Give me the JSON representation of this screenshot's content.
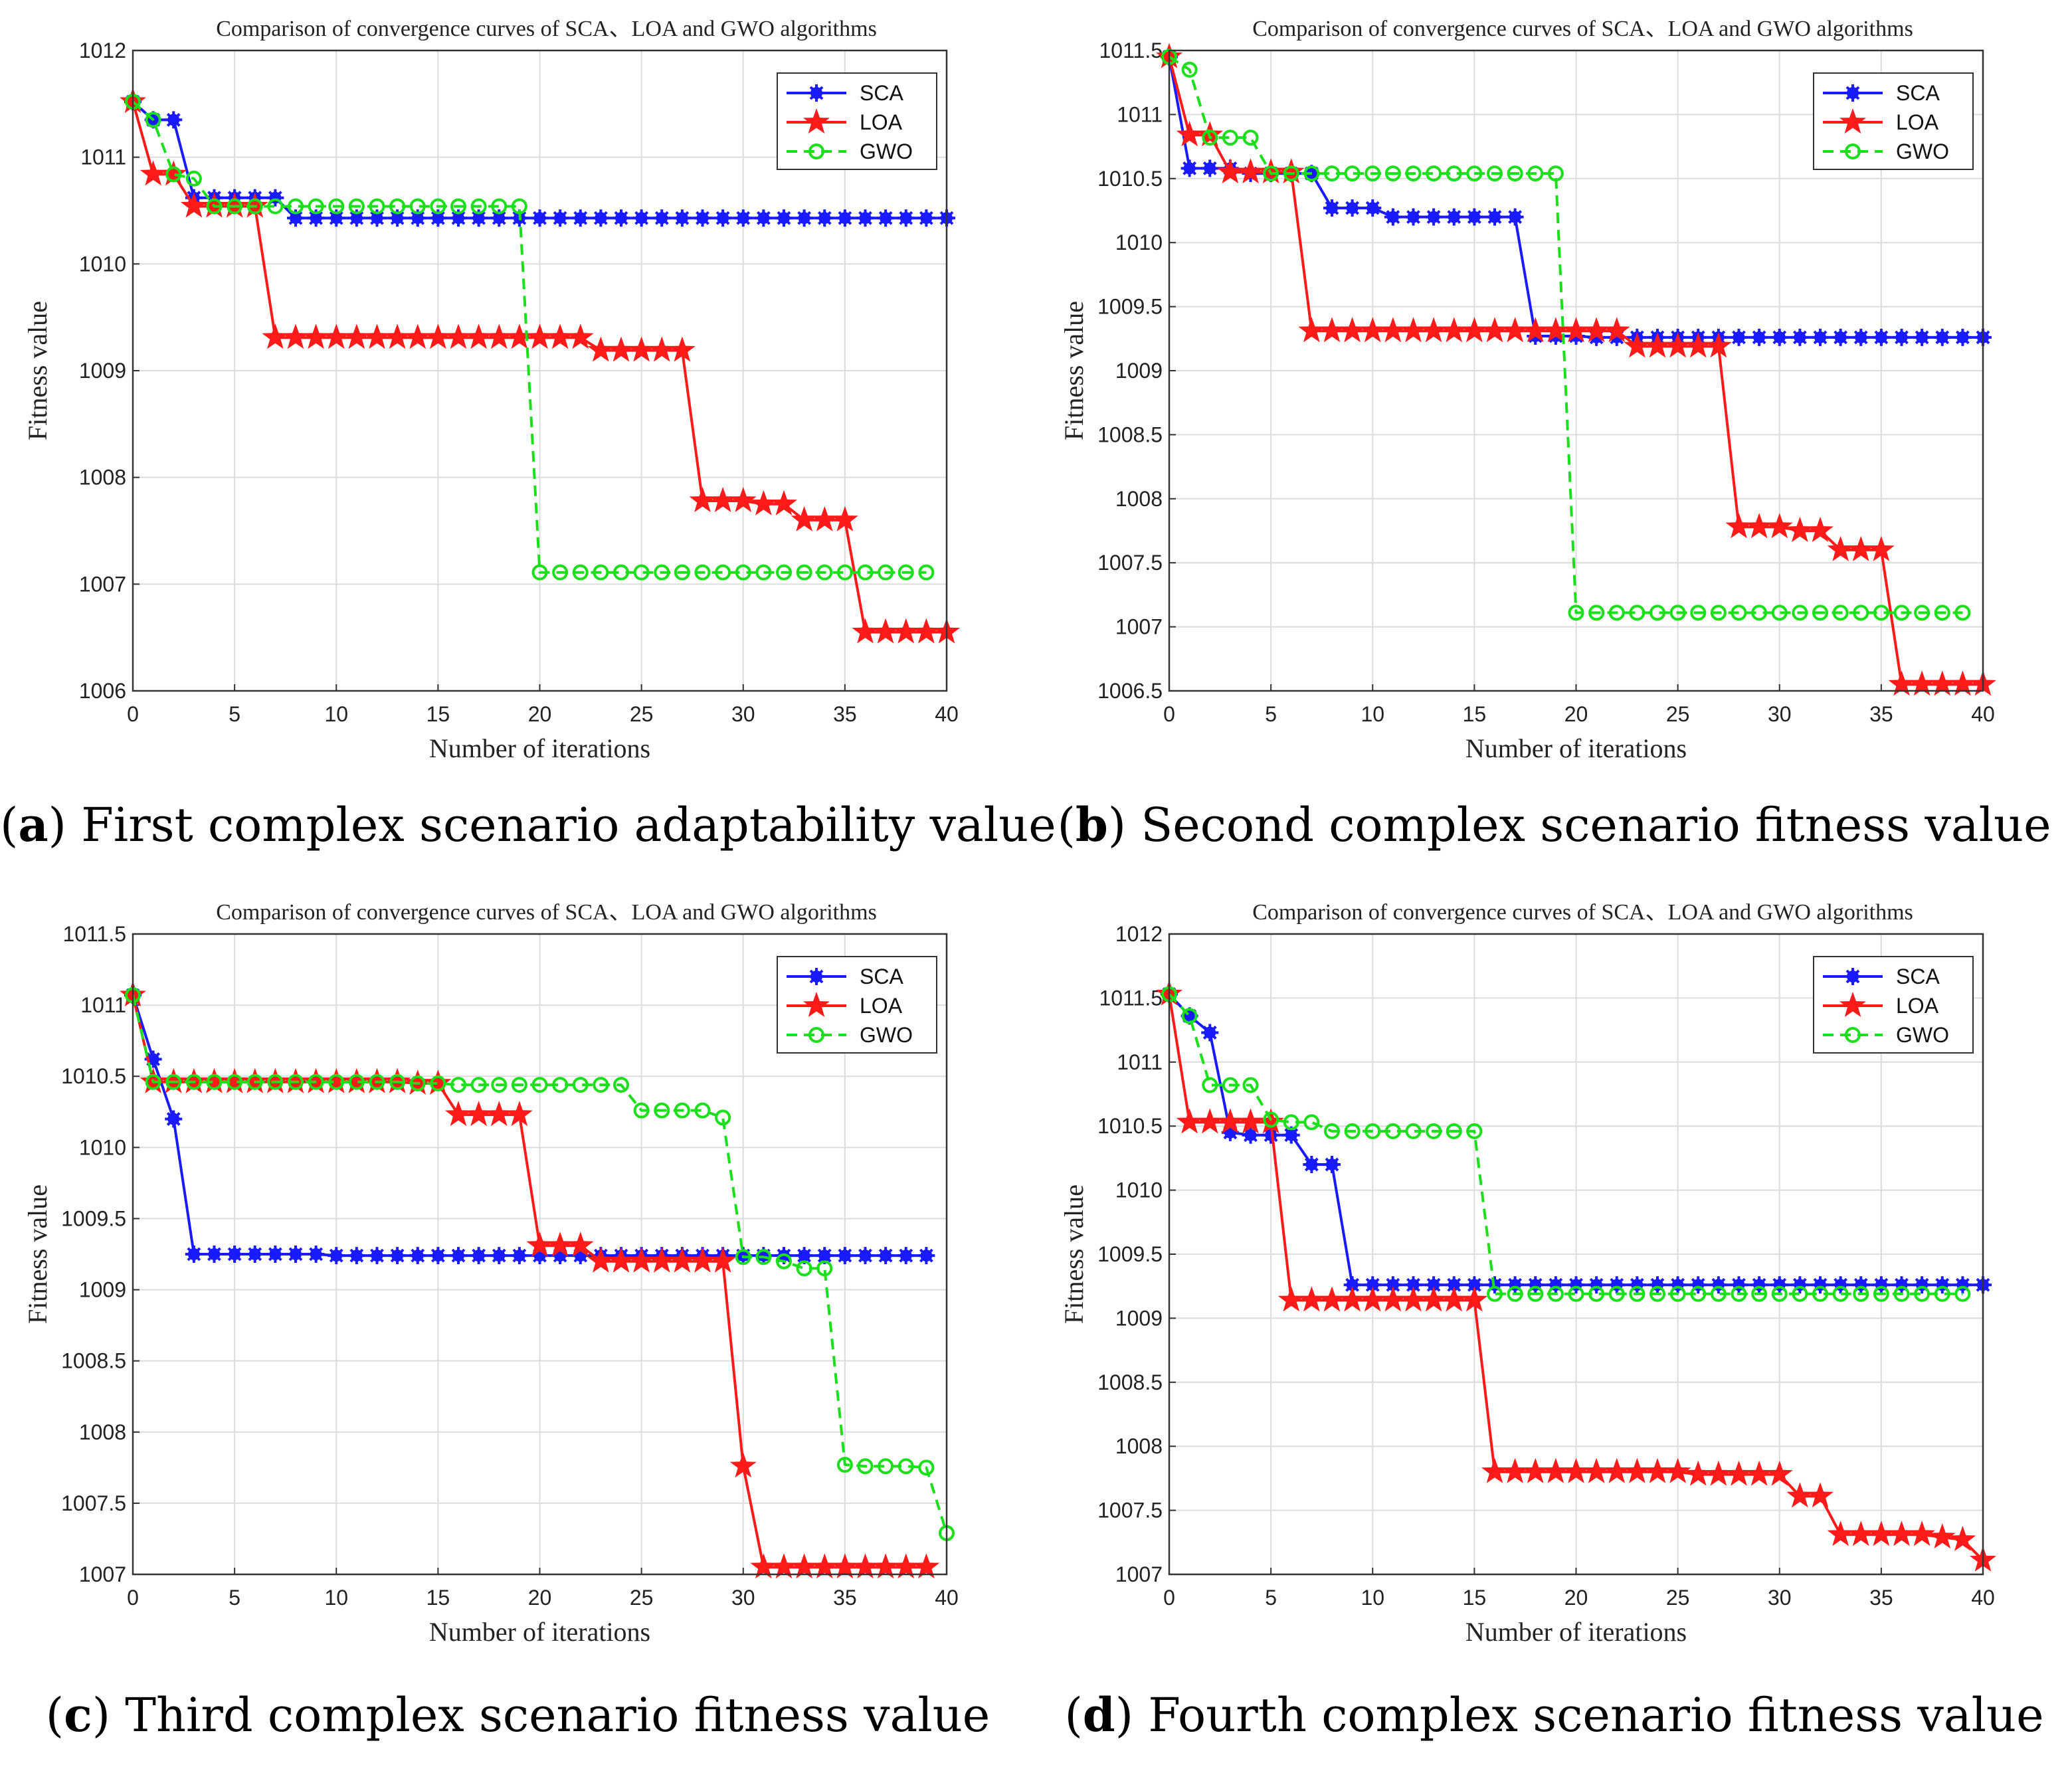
{
  "figure": {
    "panels": [
      {
        "letter": "a",
        "caption_rest": "First complex scenario adaptability value"
      },
      {
        "letter": "b",
        "caption_rest": "Second complex scenario fitness value"
      },
      {
        "letter": "c",
        "caption_rest": "Third complex scenario fitness value"
      },
      {
        "letter": "d",
        "caption_rest": "Fourth complex scenario fitness value"
      }
    ],
    "colors": {
      "SCA": "#1a1aff",
      "LOA": "#ff1a1a",
      "GWO": "#1adf1a"
    }
  },
  "chart_data": [
    {
      "type": "line",
      "title": "Comparison of convergence curves of SCA、LOA and GWO algorithms",
      "xlabel": "Number of iterations",
      "ylabel": "Fitness value",
      "xlim": [
        0,
        40
      ],
      "ylim": [
        1006,
        1012
      ],
      "xticks": [
        "0",
        "5",
        "10",
        "15",
        "20",
        "25",
        "30",
        "35",
        "40"
      ],
      "yticks": [
        "1006",
        "1007",
        "1008",
        "1009",
        "1010",
        "1011",
        "1012"
      ],
      "legend": [
        "SCA",
        "LOA",
        "GWO"
      ],
      "legend_position": "top-right",
      "grid": true,
      "series": [
        {
          "name": "SCA",
          "values": [
            1011.52,
            1011.35,
            1011.35,
            1010.62,
            1010.62,
            1010.62,
            1010.62,
            1010.62,
            1010.43,
            1010.43,
            1010.43,
            1010.43,
            1010.43,
            1010.43,
            1010.43,
            1010.43,
            1010.43,
            1010.43,
            1010.43,
            1010.43,
            1010.43,
            1010.43,
            1010.43,
            1010.43,
            1010.43,
            1010.43,
            1010.43,
            1010.43,
            1010.43,
            1010.43,
            1010.43,
            1010.43,
            1010.43,
            1010.43,
            1010.43,
            1010.43,
            1010.43,
            1010.43,
            1010.43,
            1010.43,
            1010.43
          ]
        },
        {
          "name": "LOA",
          "values": [
            1011.52,
            1010.84,
            1010.84,
            1010.54,
            1010.54,
            1010.54,
            1010.54,
            1009.31,
            1009.31,
            1009.31,
            1009.31,
            1009.31,
            1009.31,
            1009.31,
            1009.31,
            1009.31,
            1009.31,
            1009.31,
            1009.31,
            1009.31,
            1009.31,
            1009.31,
            1009.31,
            1009.19,
            1009.19,
            1009.19,
            1009.19,
            1009.19,
            1007.78,
            1007.78,
            1007.78,
            1007.75,
            1007.75,
            1007.6,
            1007.6,
            1007.6,
            1006.55,
            1006.55,
            1006.55,
            1006.55,
            1006.55
          ]
        },
        {
          "name": "GWO",
          "values": [
            1011.52,
            1011.35,
            1010.84,
            1010.8,
            1010.54,
            1010.54,
            1010.54,
            1010.54,
            1010.54,
            1010.54,
            1010.54,
            1010.54,
            1010.54,
            1010.54,
            1010.54,
            1010.54,
            1010.54,
            1010.54,
            1010.54,
            1010.54,
            1007.11,
            1007.11,
            1007.11,
            1007.11,
            1007.11,
            1007.11,
            1007.11,
            1007.11,
            1007.11,
            1007.11,
            1007.11,
            1007.11,
            1007.11,
            1007.11,
            1007.11,
            1007.11,
            1007.11,
            1007.11,
            1007.11,
            1007.11
          ]
        }
      ]
    },
    {
      "type": "line",
      "title": "Comparison of convergence curves of SCA、LOA and GWO algorithms",
      "xlabel": "Number of iterations",
      "ylabel": "Fitness value",
      "xlim": [
        0,
        40
      ],
      "ylim": [
        1006.5,
        1011.5
      ],
      "xticks": [
        "0",
        "5",
        "10",
        "15",
        "20",
        "25",
        "30",
        "35",
        "40"
      ],
      "yticks": [
        "1006.5",
        "1007",
        "1007.5",
        "1008",
        "1008.5",
        "1009",
        "1009.5",
        "1010",
        "1010.5",
        "1011",
        "1011.5"
      ],
      "legend": [
        "SCA",
        "LOA",
        "GWO"
      ],
      "legend_position": "top-right",
      "grid": true,
      "series": [
        {
          "name": "SCA",
          "values": [
            1011.45,
            1010.58,
            1010.58,
            1010.58,
            1010.54,
            1010.54,
            1010.54,
            1010.54,
            1010.27,
            1010.27,
            1010.27,
            1010.2,
            1010.2,
            1010.2,
            1010.2,
            1010.2,
            1010.2,
            1010.2,
            1009.27,
            1009.27,
            1009.27,
            1009.26,
            1009.26,
            1009.26,
            1009.26,
            1009.26,
            1009.26,
            1009.26,
            1009.26,
            1009.26,
            1009.26,
            1009.26,
            1009.26,
            1009.26,
            1009.26,
            1009.26,
            1009.26,
            1009.26,
            1009.26,
            1009.26,
            1009.26
          ]
        },
        {
          "name": "LOA",
          "values": [
            1011.45,
            1010.84,
            1010.84,
            1010.55,
            1010.55,
            1010.55,
            1010.55,
            1009.31,
            1009.31,
            1009.31,
            1009.31,
            1009.31,
            1009.31,
            1009.31,
            1009.31,
            1009.31,
            1009.31,
            1009.31,
            1009.31,
            1009.31,
            1009.31,
            1009.31,
            1009.31,
            1009.19,
            1009.19,
            1009.19,
            1009.19,
            1009.19,
            1007.78,
            1007.78,
            1007.78,
            1007.75,
            1007.75,
            1007.6,
            1007.6,
            1007.6,
            1006.55,
            1006.55,
            1006.55,
            1006.55,
            1006.55
          ]
        },
        {
          "name": "GWO",
          "values": [
            1011.45,
            1011.35,
            1010.82,
            1010.82,
            1010.82,
            1010.54,
            1010.54,
            1010.54,
            1010.54,
            1010.54,
            1010.54,
            1010.54,
            1010.54,
            1010.54,
            1010.54,
            1010.54,
            1010.54,
            1010.54,
            1010.54,
            1010.54,
            1007.11,
            1007.11,
            1007.11,
            1007.11,
            1007.11,
            1007.11,
            1007.11,
            1007.11,
            1007.11,
            1007.11,
            1007.11,
            1007.11,
            1007.11,
            1007.11,
            1007.11,
            1007.11,
            1007.11,
            1007.11,
            1007.11,
            1007.11
          ]
        }
      ]
    },
    {
      "type": "line",
      "title": "Comparison of convergence curves of SCA、LOA and GWO algorithms",
      "xlabel": "Number of iterations",
      "ylabel": "Fitness value",
      "xlim": [
        0,
        40
      ],
      "ylim": [
        1007,
        1011.5
      ],
      "xticks": [
        "0",
        "5",
        "10",
        "15",
        "20",
        "25",
        "30",
        "35",
        "40"
      ],
      "yticks": [
        "1007",
        "1007.5",
        "1008",
        "1008.5",
        "1009",
        "1009.5",
        "1010",
        "1010.5",
        "1011",
        "1011.5"
      ],
      "legend": [
        "SCA",
        "LOA",
        "GWO"
      ],
      "legend_position": "top-right",
      "grid": true,
      "series": [
        {
          "name": "SCA",
          "values": [
            1011.07,
            1010.62,
            1010.2,
            1009.25,
            1009.25,
            1009.25,
            1009.25,
            1009.25,
            1009.25,
            1009.25,
            1009.24,
            1009.24,
            1009.24,
            1009.24,
            1009.24,
            1009.24,
            1009.24,
            1009.24,
            1009.24,
            1009.24,
            1009.24,
            1009.24,
            1009.24,
            1009.24,
            1009.24,
            1009.24,
            1009.24,
            1009.24,
            1009.24,
            1009.24,
            1009.24,
            1009.24,
            1009.24,
            1009.24,
            1009.24,
            1009.24,
            1009.24,
            1009.24,
            1009.24,
            1009.24
          ]
        },
        {
          "name": "LOA",
          "values": [
            1011.07,
            1010.46,
            1010.46,
            1010.46,
            1010.46,
            1010.46,
            1010.46,
            1010.46,
            1010.46,
            1010.46,
            1010.46,
            1010.46,
            1010.46,
            1010.46,
            1010.45,
            1010.45,
            1010.23,
            1010.23,
            1010.23,
            1010.23,
            1009.31,
            1009.31,
            1009.31,
            1009.2,
            1009.2,
            1009.2,
            1009.2,
            1009.2,
            1009.2,
            1009.2,
            1007.76,
            1007.05,
            1007.05,
            1007.05,
            1007.05,
            1007.05,
            1007.05,
            1007.05,
            1007.05,
            1007.05
          ]
        },
        {
          "name": "GWO",
          "values": [
            1011.07,
            1010.46,
            1010.46,
            1010.46,
            1010.46,
            1010.46,
            1010.46,
            1010.46,
            1010.46,
            1010.46,
            1010.46,
            1010.46,
            1010.46,
            1010.46,
            1010.45,
            1010.45,
            1010.44,
            1010.44,
            1010.44,
            1010.44,
            1010.44,
            1010.44,
            1010.44,
            1010.44,
            1010.44,
            1010.26,
            1010.26,
            1010.26,
            1010.26,
            1010.21,
            1009.23,
            1009.23,
            1009.2,
            1009.15,
            1009.15,
            1007.77,
            1007.76,
            1007.76,
            1007.76,
            1007.75,
            1007.29
          ]
        }
      ]
    },
    {
      "type": "line",
      "title": "Comparison of convergence curves of SCA、LOA and GWO algorithms",
      "xlabel": "Number of iterations",
      "ylabel": "Fitness value",
      "xlim": [
        0,
        40
      ],
      "ylim": [
        1007,
        1012
      ],
      "xticks": [
        "0",
        "5",
        "10",
        "15",
        "20",
        "25",
        "30",
        "35",
        "40"
      ],
      "yticks": [
        "1007",
        "1007.5",
        "1008",
        "1008.5",
        "1009",
        "1009.5",
        "1010",
        "1010.5",
        "1011",
        "1011.5",
        "1012"
      ],
      "legend": [
        "SCA",
        "LOA",
        "GWO"
      ],
      "legend_position": "top-right",
      "grid": true,
      "series": [
        {
          "name": "SCA",
          "values": [
            1011.53,
            1011.36,
            1011.23,
            1010.45,
            1010.43,
            1010.43,
            1010.43,
            1010.2,
            1010.2,
            1009.26,
            1009.26,
            1009.26,
            1009.26,
            1009.26,
            1009.26,
            1009.26,
            1009.26,
            1009.26,
            1009.26,
            1009.26,
            1009.26,
            1009.26,
            1009.26,
            1009.26,
            1009.26,
            1009.26,
            1009.26,
            1009.26,
            1009.26,
            1009.26,
            1009.26,
            1009.26,
            1009.26,
            1009.26,
            1009.26,
            1009.26,
            1009.26,
            1009.26,
            1009.26,
            1009.26,
            1009.26
          ]
        },
        {
          "name": "LOA",
          "values": [
            1011.53,
            1010.53,
            1010.53,
            1010.53,
            1010.53,
            1010.53,
            1009.14,
            1009.14,
            1009.14,
            1009.14,
            1009.14,
            1009.14,
            1009.14,
            1009.14,
            1009.14,
            1009.14,
            1007.8,
            1007.8,
            1007.8,
            1007.8,
            1007.8,
            1007.8,
            1007.8,
            1007.8,
            1007.8,
            1007.8,
            1007.78,
            1007.78,
            1007.78,
            1007.78,
            1007.78,
            1007.61,
            1007.61,
            1007.31,
            1007.31,
            1007.31,
            1007.31,
            1007.31,
            1007.29,
            1007.27,
            1007.11
          ]
        },
        {
          "name": "GWO",
          "values": [
            1011.53,
            1011.36,
            1010.82,
            1010.82,
            1010.82,
            1010.55,
            1010.53,
            1010.53,
            1010.46,
            1010.46,
            1010.46,
            1010.46,
            1010.46,
            1010.46,
            1010.46,
            1010.46,
            1009.19,
            1009.19,
            1009.19,
            1009.19,
            1009.19,
            1009.19,
            1009.19,
            1009.19,
            1009.19,
            1009.19,
            1009.19,
            1009.19,
            1009.19,
            1009.19,
            1009.19,
            1009.19,
            1009.19,
            1009.19,
            1009.19,
            1009.19,
            1009.19,
            1009.19,
            1009.19,
            1009.19
          ]
        }
      ]
    }
  ]
}
